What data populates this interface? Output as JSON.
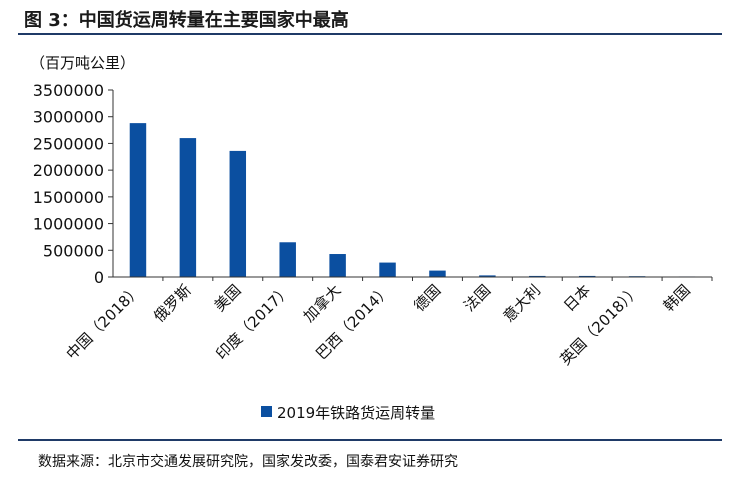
{
  "figure": {
    "title": "图 3：中国货运周转量在主要国家中最高",
    "source": "数据来源：北京市交通发展研究院，国家发改委，国泰君安证券研究"
  },
  "chart_data": {
    "type": "bar",
    "unit_label": "（百万吨公里）",
    "categories": [
      "中国（2018）",
      "俄罗斯",
      "美国",
      "印度（2017）",
      "加拿大",
      "巴西（2014）",
      "德国",
      "法国",
      "意大利",
      "日本",
      "英国（2018））",
      "韩国"
    ],
    "series": [
      {
        "name": "2019年铁路货运周转量",
        "color": "#0b4fa0",
        "values": [
          2880000,
          2600000,
          2360000,
          650000,
          430000,
          270000,
          120000,
          30000,
          20000,
          20000,
          15000,
          10000
        ]
      }
    ],
    "ylim": [
      0,
      3500000
    ],
    "yticks": [
      "0",
      "500000",
      "1000000",
      "1500000",
      "2000000",
      "2500000",
      "3000000",
      "3500000"
    ],
    "grid": false,
    "legend_position": "bottom"
  }
}
